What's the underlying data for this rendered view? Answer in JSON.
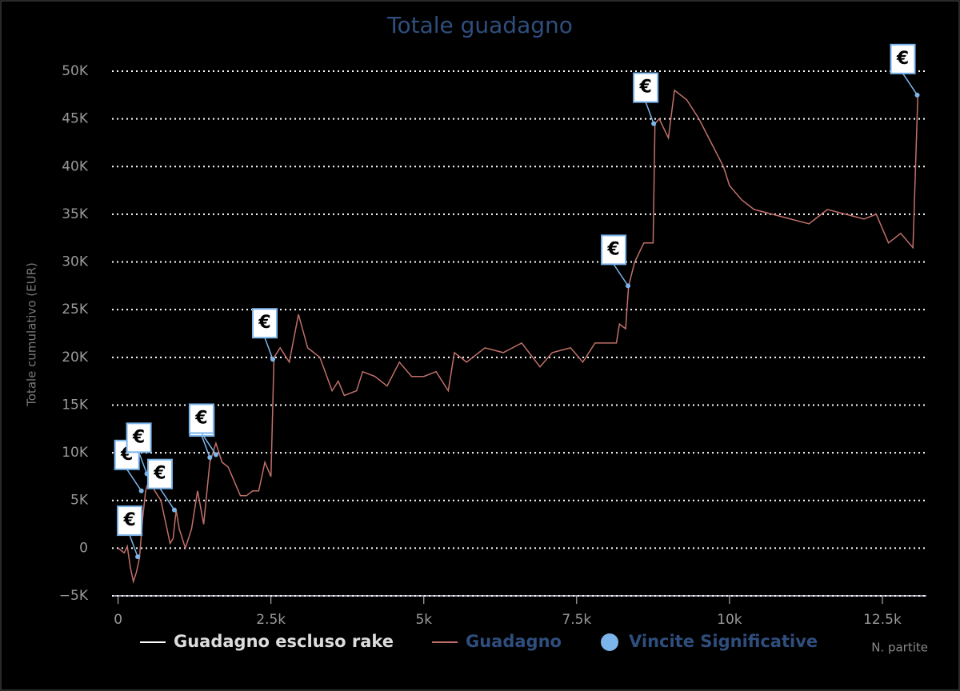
{
  "chart_data": {
    "type": "line",
    "title": "Totale guadagno",
    "ylabel": "Totale cumulativo (EUR)",
    "xlabel": "N. partite",
    "xlim": [
      -100,
      13220
    ],
    "ylim": [
      -5000,
      50000
    ],
    "xticks": [
      {
        "value": 0,
        "label": "0"
      },
      {
        "value": 2500,
        "label": "2.5k"
      },
      {
        "value": 5000,
        "label": "5k"
      },
      {
        "value": 7500,
        "label": "7.5k"
      },
      {
        "value": 10000,
        "label": "10k"
      },
      {
        "value": 12500,
        "label": "12.5k"
      }
    ],
    "yticks": [
      {
        "value": -5000,
        "label": "−5K"
      },
      {
        "value": 0,
        "label": "0"
      },
      {
        "value": 5000,
        "label": "5K"
      },
      {
        "value": 10000,
        "label": "10K"
      },
      {
        "value": 15000,
        "label": "15K"
      },
      {
        "value": 20000,
        "label": "20K"
      },
      {
        "value": 25000,
        "label": "25K"
      },
      {
        "value": 30000,
        "label": "30K"
      },
      {
        "value": 35000,
        "label": "35K"
      },
      {
        "value": 40000,
        "label": "40K"
      },
      {
        "value": 45000,
        "label": "45K"
      },
      {
        "value": 50000,
        "label": "50K"
      }
    ],
    "grid": true,
    "series": [
      {
        "name": "Guadagno escluso rake",
        "color": "#ffffff",
        "x": [],
        "values": []
      },
      {
        "name": "Guadagno",
        "color": "#c0706a",
        "x": [
          0,
          100,
          150,
          200,
          250,
          300,
          350,
          400,
          450,
          520,
          600,
          700,
          800,
          850,
          900,
          950,
          1000,
          1100,
          1200,
          1300,
          1400,
          1500,
          1600,
          1700,
          1800,
          1900,
          2000,
          2100,
          2200,
          2300,
          2400,
          2500,
          2550,
          2650,
          2800,
          2950,
          3100,
          3300,
          3500,
          3600,
          3700,
          3900,
          4000,
          4200,
          4400,
          4600,
          4800,
          5000,
          5200,
          5400,
          5500,
          5700,
          6000,
          6300,
          6600,
          6900,
          7100,
          7400,
          7600,
          7800,
          8000,
          8150,
          8200,
          8300,
          8350,
          8450,
          8600,
          8750,
          8780,
          8850,
          9000,
          9100,
          9300,
          9500,
          9700,
          9900,
          10000,
          10200,
          10400,
          10700,
          11000,
          11300,
          11600,
          11900,
          12200,
          12400,
          12600,
          12800,
          13000,
          13080
        ],
        "values": [
          0,
          -500,
          200,
          -2000,
          -3500,
          -2500,
          -1000,
          3000,
          6000,
          7500,
          6000,
          5000,
          2000,
          500,
          1000,
          4000,
          2000,
          0,
          2000,
          6000,
          2500,
          9000,
          11000,
          9000,
          8500,
          7000,
          5500,
          5500,
          6000,
          6000,
          9000,
          7500,
          20000,
          21000,
          19500,
          24500,
          21000,
          20000,
          16500,
          17500,
          16000,
          16500,
          18500,
          18000,
          17000,
          19500,
          18000,
          18000,
          18500,
          16500,
          20500,
          19500,
          21000,
          20500,
          21500,
          19000,
          20500,
          21000,
          19500,
          21500,
          21500,
          21500,
          23500,
          23000,
          27500,
          30000,
          32000,
          32000,
          44500,
          45000,
          43000,
          48000,
          47000,
          45000,
          42500,
          40000,
          38000,
          36500,
          35500,
          35000,
          34500,
          34000,
          35500,
          35000,
          34500,
          35000,
          32000,
          33000,
          31500,
          47500
        ]
      },
      {
        "name": "Vincite Significative",
        "color": "#7cb5ec",
        "x": [
          320,
          380,
          470,
          920,
          1500,
          1600,
          2530,
          8340,
          8760,
          13070
        ],
        "values": [
          -900,
          6000,
          7800,
          4000,
          9500,
          9800,
          19800,
          27500,
          44500,
          47500
        ],
        "labels": [
          "€",
          "€",
          "€",
          "€",
          "€",
          "€",
          "€",
          "€",
          "€",
          "€"
        ]
      }
    ]
  }
}
